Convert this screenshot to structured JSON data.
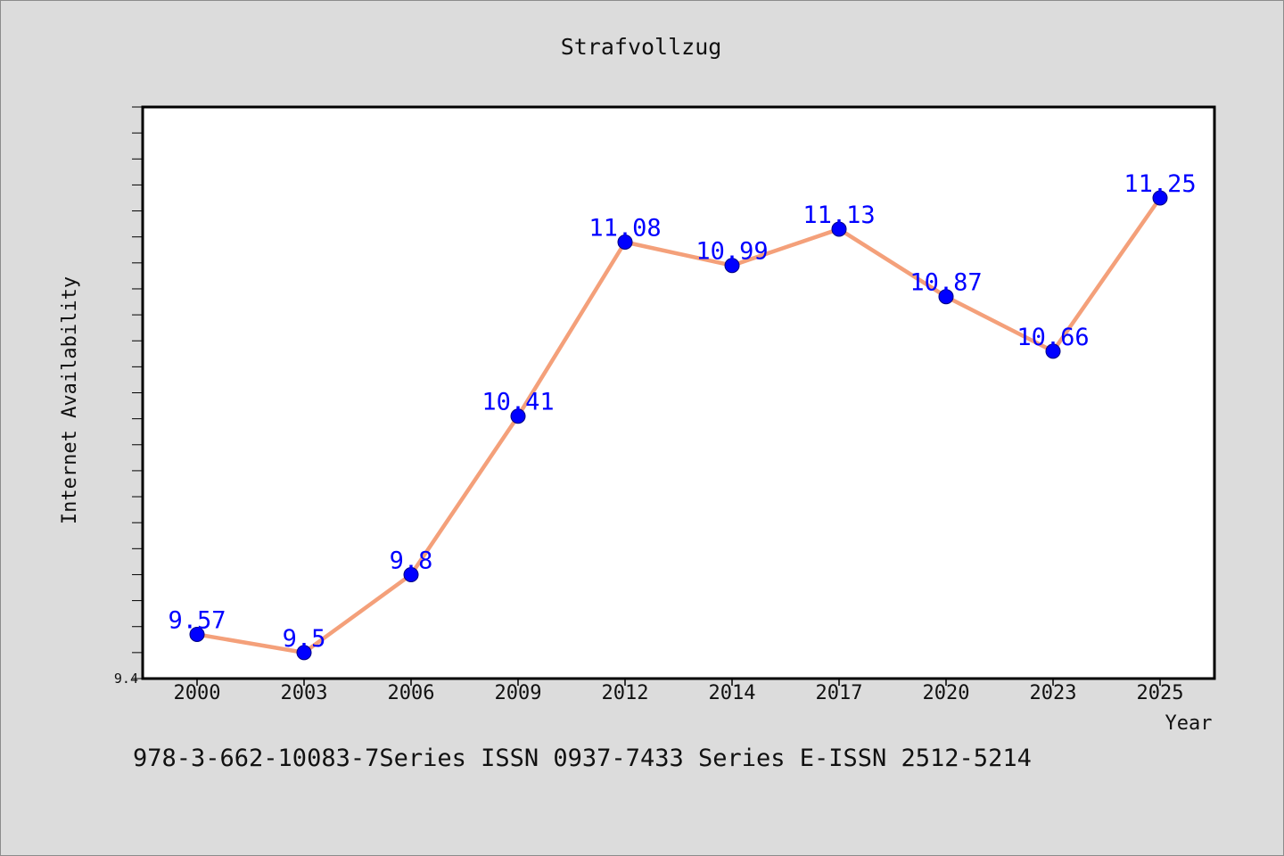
{
  "chart_data": {
    "type": "line",
    "title": "Strafvollzug",
    "xlabel": "Year",
    "ylabel": "Internet Availability",
    "categories": [
      "2000",
      "2003",
      "2006",
      "2009",
      "2012",
      "2014",
      "2017",
      "2020",
      "2023",
      "2025"
    ],
    "series": [
      {
        "values": [
          9.57,
          9.5,
          9.8,
          10.41,
          11.08,
          10.99,
          11.13,
          10.87,
          10.66,
          11.25
        ],
        "labels": [
          "9.57",
          "9.5",
          "9.8",
          "10.41",
          "11.08",
          "10.99",
          "11.13",
          "10.87",
          "10.66",
          "11.25"
        ],
        "line_color": "#f4a07a",
        "marker_color": "#0000ff"
      }
    ],
    "ylim": [
      9.4,
      11.6
    ],
    "yticks_labeled": [
      "9.4"
    ],
    "grid": false,
    "legend": false
  },
  "footnote": "978-3-662-10083-7Series ISSN 0937-7433 Series E-ISSN 2512-5214"
}
